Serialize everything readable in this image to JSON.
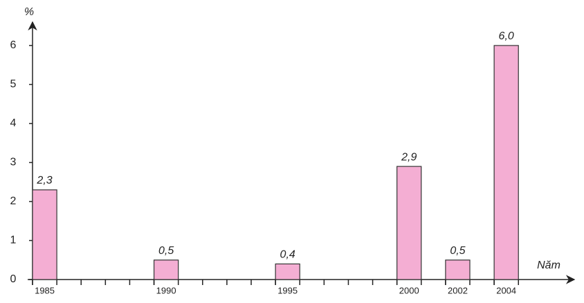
{
  "chart_data": {
    "type": "bar",
    "y_label": "%",
    "x_label": "Năm",
    "x": [
      1985,
      1990,
      1995,
      2000,
      2002,
      2004
    ],
    "values": [
      2.3,
      0.5,
      0.4,
      2.9,
      0.5,
      6.0
    ],
    "value_labels": [
      "2,3",
      "0,5",
      "0,4",
      "2,9",
      "0,5",
      "6,0"
    ],
    "color": "#f4aed3",
    "xlim": [
      1985,
      2007.3
    ],
    "xticks": [
      1985,
      1990,
      1995,
      2000,
      2002,
      2004
    ],
    "ylim": [
      0,
      6.6
    ],
    "yticks": [
      0,
      1,
      2,
      3,
      4,
      5,
      6
    ]
  }
}
